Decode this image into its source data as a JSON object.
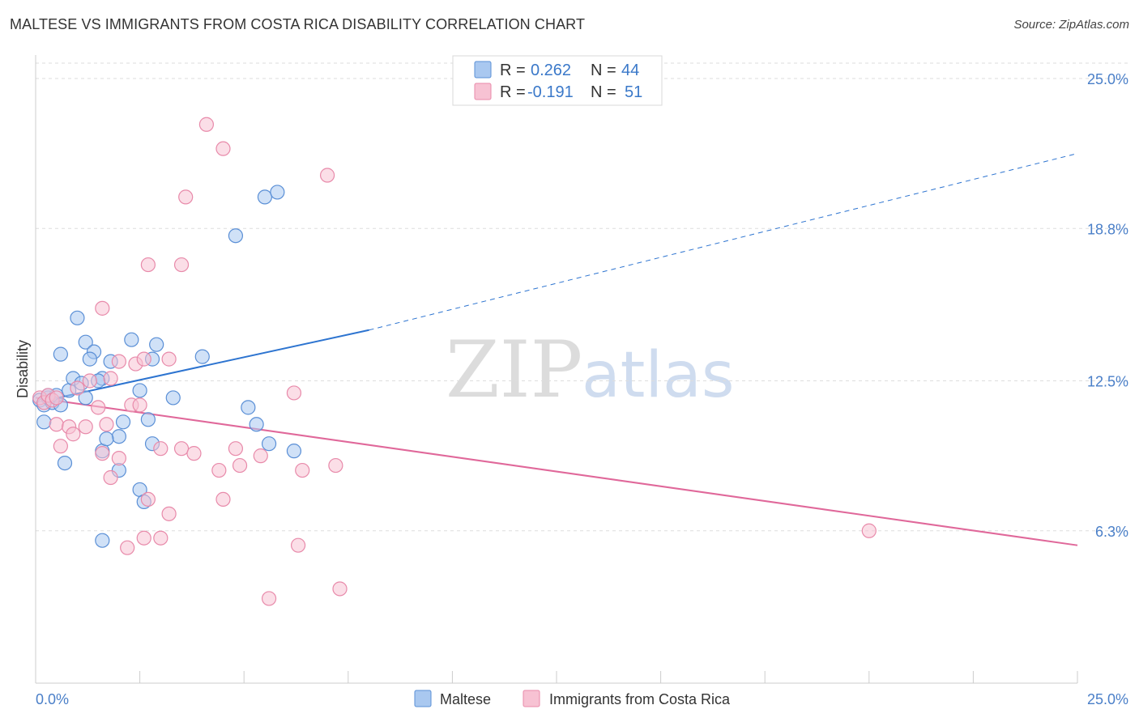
{
  "header": {
    "title": "MALTESE VS IMMIGRANTS FROM COSTA RICA DISABILITY CORRELATION CHART",
    "source": "Source: ZipAtlas.com"
  },
  "watermark": {
    "part1": "ZIP",
    "part2": "atlas"
  },
  "legend": {
    "rows": [
      {
        "r_label": "R =",
        "r_value": "0.262",
        "n_label": "N =",
        "n_value": "44"
      },
      {
        "r_label": "R =",
        "r_value": "-0.191",
        "n_label": "N =",
        "n_value": "51"
      }
    ]
  },
  "bottom_legend": {
    "items": [
      "Maltese",
      "Immigrants from Costa Rica"
    ]
  },
  "colors": {
    "blue_fill": "#a9c8f0",
    "blue_stroke": "#5a8fd6",
    "blue_line": "#2d74d0",
    "pink_fill": "#f7c2d3",
    "pink_stroke": "#e88aaa",
    "pink_line": "#e0689a",
    "grid": "#dddddd",
    "tick_label": "#4a7fc8"
  },
  "chart_data": {
    "type": "scatter",
    "title": "MALTESE VS IMMIGRANTS FROM COSTA RICA DISABILITY CORRELATION CHART",
    "ylabel": "Disability",
    "xlabel": "",
    "xlim": [
      0,
      25
    ],
    "ylim": [
      0,
      25.5
    ],
    "x_tick_labels": [
      {
        "value": 0,
        "label": "0.0%"
      },
      {
        "value": 25,
        "label": "25.0%"
      }
    ],
    "y_tick_labels": [
      {
        "value": 25.0,
        "label": "25.0%"
      },
      {
        "value": 18.8,
        "label": "18.8%"
      },
      {
        "value": 12.5,
        "label": "12.5%"
      },
      {
        "value": 6.3,
        "label": "6.3%"
      }
    ],
    "series": [
      {
        "name": "Maltese",
        "r": 0.262,
        "n": 44,
        "trend": {
          "x": [
            0,
            8.0
          ],
          "y": [
            11.6,
            14.6
          ],
          "extend_to_x": 25.0,
          "extend_to_y": 21.9
        },
        "points": [
          [
            0.1,
            11.7
          ],
          [
            0.2,
            11.5
          ],
          [
            0.3,
            11.8
          ],
          [
            0.4,
            11.6
          ],
          [
            0.5,
            11.9
          ],
          [
            0.2,
            10.8
          ],
          [
            0.8,
            12.1
          ],
          [
            0.6,
            13.6
          ],
          [
            0.9,
            12.6
          ],
          [
            1.1,
            12.4
          ],
          [
            1.2,
            14.1
          ],
          [
            1.4,
            13.7
          ],
          [
            1.3,
            13.4
          ],
          [
            1.6,
            12.6
          ],
          [
            1.0,
            15.1
          ],
          [
            1.8,
            13.3
          ],
          [
            2.0,
            10.2
          ],
          [
            2.1,
            10.8
          ],
          [
            1.6,
            9.6
          ],
          [
            2.3,
            14.2
          ],
          [
            2.5,
            12.1
          ],
          [
            2.7,
            10.9
          ],
          [
            2.8,
            9.9
          ],
          [
            2.8,
            13.4
          ],
          [
            2.9,
            14.0
          ],
          [
            3.3,
            11.8
          ],
          [
            4.0,
            13.5
          ],
          [
            5.1,
            11.4
          ],
          [
            5.3,
            10.7
          ],
          [
            5.6,
            9.9
          ],
          [
            6.2,
            9.6
          ],
          [
            5.5,
            20.1
          ],
          [
            5.8,
            20.3
          ],
          [
            4.8,
            18.5
          ],
          [
            0.7,
            9.1
          ],
          [
            2.0,
            8.8
          ],
          [
            2.5,
            8.0
          ],
          [
            2.6,
            7.5
          ],
          [
            1.6,
            5.9
          ],
          [
            0.6,
            11.5
          ],
          [
            1.5,
            12.5
          ],
          [
            0.3,
            11.9
          ],
          [
            1.7,
            10.1
          ],
          [
            1.2,
            11.8
          ]
        ]
      },
      {
        "name": "Immigrants from Costa Rica",
        "r": -0.191,
        "n": 51,
        "trend": {
          "x": [
            0,
            25.0
          ],
          "y": [
            11.8,
            5.7
          ]
        },
        "points": [
          [
            0.1,
            11.8
          ],
          [
            0.2,
            11.6
          ],
          [
            0.3,
            11.9
          ],
          [
            0.4,
            11.7
          ],
          [
            0.5,
            11.8
          ],
          [
            0.5,
            10.7
          ],
          [
            0.8,
            10.6
          ],
          [
            0.9,
            10.3
          ],
          [
            1.0,
            12.2
          ],
          [
            1.3,
            12.5
          ],
          [
            1.2,
            10.6
          ],
          [
            1.5,
            11.4
          ],
          [
            1.7,
            10.7
          ],
          [
            1.8,
            12.6
          ],
          [
            2.0,
            13.3
          ],
          [
            2.3,
            11.5
          ],
          [
            2.4,
            13.2
          ],
          [
            0.6,
            9.8
          ],
          [
            1.6,
            9.5
          ],
          [
            2.0,
            9.3
          ],
          [
            1.8,
            8.5
          ],
          [
            2.7,
            7.6
          ],
          [
            3.0,
            9.7
          ],
          [
            3.2,
            7.0
          ],
          [
            3.5,
            9.7
          ],
          [
            3.8,
            9.5
          ],
          [
            4.4,
            8.8
          ],
          [
            4.5,
            7.6
          ],
          [
            4.8,
            9.7
          ],
          [
            4.9,
            9.0
          ],
          [
            5.4,
            9.4
          ],
          [
            6.2,
            12.0
          ],
          [
            6.4,
            8.8
          ],
          [
            6.3,
            5.7
          ],
          [
            7.2,
            9.0
          ],
          [
            7.3,
            3.9
          ],
          [
            2.6,
            6.0
          ],
          [
            3.0,
            6.0
          ],
          [
            2.2,
            5.6
          ],
          [
            5.6,
            3.5
          ],
          [
            7.0,
            21.0
          ],
          [
            4.1,
            23.1
          ],
          [
            4.5,
            22.1
          ],
          [
            3.6,
            20.1
          ],
          [
            2.7,
            17.3
          ],
          [
            3.5,
            17.3
          ],
          [
            1.6,
            15.5
          ],
          [
            20.0,
            6.3
          ],
          [
            2.5,
            11.5
          ],
          [
            3.2,
            13.4
          ],
          [
            2.6,
            13.4
          ]
        ]
      }
    ]
  }
}
